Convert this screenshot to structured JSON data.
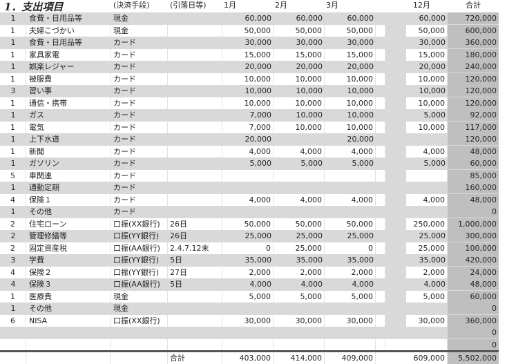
{
  "header": {
    "title": "1．支出項目",
    "method": "(決済手段)",
    "date": "(引落日等)",
    "months": [
      "1月",
      "2月",
      "3月"
    ],
    "dec": "12月",
    "total": "合計"
  },
  "rows": [
    {
      "n": "1",
      "item": "食費・日用品等",
      "method": "現金",
      "date": "",
      "m1": "60,000",
      "m2": "60,000",
      "m3": "60,000",
      "dec": "60,000",
      "total": "720,000"
    },
    {
      "n": "1",
      "item": "夫婦こづかい",
      "method": "現金",
      "date": "",
      "m1": "50,000",
      "m2": "50,000",
      "m3": "50,000",
      "dec": "50,000",
      "total": "600,000"
    },
    {
      "n": "1",
      "item": "食費・日用品等",
      "method": "カード",
      "date": "",
      "m1": "30,000",
      "m2": "30,000",
      "m3": "30,000",
      "dec": "30,000",
      "total": "360,000"
    },
    {
      "n": "1",
      "item": "家具家電",
      "method": "カード",
      "date": "",
      "m1": "15,000",
      "m2": "15,000",
      "m3": "15,000",
      "dec": "15,000",
      "total": "180,000"
    },
    {
      "n": "1",
      "item": "娯楽レジャー",
      "method": "カード",
      "date": "",
      "m1": "20,000",
      "m2": "20,000",
      "m3": "20,000",
      "dec": "20,000",
      "total": "240,000"
    },
    {
      "n": "1",
      "item": "被服費",
      "method": "カード",
      "date": "",
      "m1": "10,000",
      "m2": "10,000",
      "m3": "10,000",
      "dec": "10,000",
      "total": "120,000"
    },
    {
      "n": "3",
      "item": "習い事",
      "method": "カード",
      "date": "",
      "m1": "10,000",
      "m2": "10,000",
      "m3": "10,000",
      "dec": "10,000",
      "total": "120,000"
    },
    {
      "n": "1",
      "item": "通信・携帯",
      "method": "カード",
      "date": "",
      "m1": "10,000",
      "m2": "10,000",
      "m3": "10,000",
      "dec": "10,000",
      "total": "120,000"
    },
    {
      "n": "1",
      "item": "ガス",
      "method": "カード",
      "date": "",
      "m1": "7,000",
      "m2": "10,000",
      "m3": "10,000",
      "dec": "5,000",
      "total": "92,000"
    },
    {
      "n": "1",
      "item": "電気",
      "method": "カード",
      "date": "",
      "m1": "7,000",
      "m2": "10,000",
      "m3": "10,000",
      "dec": "10,000",
      "total": "117,000"
    },
    {
      "n": "1",
      "item": "上下水道",
      "method": "カード",
      "date": "",
      "m1": "20,000",
      "m2": "",
      "m3": "20,000",
      "dec": "",
      "total": "120,000"
    },
    {
      "n": "1",
      "item": "新聞",
      "method": "カード",
      "date": "",
      "m1": "4,000",
      "m2": "4,000",
      "m3": "4,000",
      "dec": "4,000",
      "total": "48,000"
    },
    {
      "n": "1",
      "item": "ガソリン",
      "method": "カード",
      "date": "",
      "m1": "5,000",
      "m2": "5,000",
      "m3": "5,000",
      "dec": "5,000",
      "total": "60,000"
    },
    {
      "n": "5",
      "item": "車関連",
      "method": "カード",
      "date": "",
      "m1": "",
      "m2": "",
      "m3": "",
      "dec": "",
      "total": "85,000"
    },
    {
      "n": "1",
      "item": "通勤定期",
      "method": "カード",
      "date": "",
      "m1": "",
      "m2": "",
      "m3": "",
      "dec": "",
      "total": "160,000"
    },
    {
      "n": "4",
      "item": "保険１",
      "method": "カード",
      "date": "",
      "m1": "4,000",
      "m2": "4,000",
      "m3": "4,000",
      "dec": "4,000",
      "total": "48,000"
    },
    {
      "n": "1",
      "item": "その他",
      "method": "カード",
      "date": "",
      "m1": "",
      "m2": "",
      "m3": "",
      "dec": "",
      "total": "0"
    },
    {
      "n": "2",
      "item": "住宅ローン",
      "method": "口振(XX銀行)",
      "date": "26日",
      "m1": "50,000",
      "m2": "50,000",
      "m3": "50,000",
      "dec": "250,000",
      "total": "1,000,000"
    },
    {
      "n": "2",
      "item": "管理修繕等",
      "method": "口振(YY銀行)",
      "date": "26日",
      "m1": "25,000",
      "m2": "25,000",
      "m3": "25,000",
      "dec": "25,000",
      "total": "300,000"
    },
    {
      "n": "2",
      "item": "固定資産税",
      "method": "口振(AA銀行)",
      "date": "2.4.7.12末",
      "m1": "0",
      "m2": "25,000",
      "m3": "0",
      "dec": "25,000",
      "total": "100,000"
    },
    {
      "n": "3",
      "item": "学費",
      "method": "口振(YY銀行)",
      "date": "5日",
      "m1": "35,000",
      "m2": "35,000",
      "m3": "35,000",
      "dec": "35,000",
      "total": "420,000"
    },
    {
      "n": "4",
      "item": "保険２",
      "method": "口振(YY銀行)",
      "date": "27日",
      "m1": "2,000",
      "m2": "2,000",
      "m3": "2,000",
      "dec": "2,000",
      "total": "24,000"
    },
    {
      "n": "4",
      "item": "保険３",
      "method": "口振(AA銀行)",
      "date": "5日",
      "m1": "4,000",
      "m2": "4,000",
      "m3": "4,000",
      "dec": "4,000",
      "total": "48,000"
    },
    {
      "n": "1",
      "item": "医療費",
      "method": "現金",
      "date": "",
      "m1": "5,000",
      "m2": "5,000",
      "m3": "5,000",
      "dec": "5,000",
      "total": "60,000"
    },
    {
      "n": "1",
      "item": "その他",
      "method": "現金",
      "date": "",
      "m1": "",
      "m2": "",
      "m3": "",
      "dec": "",
      "total": "0"
    },
    {
      "n": "6",
      "item": "NISA",
      "method": "口振(XX銀行)",
      "date": "",
      "m1": "30,000",
      "m2": "30,000",
      "m3": "30,000",
      "dec": "30,000",
      "total": "360,000"
    },
    {
      "n": "",
      "item": "",
      "method": "",
      "date": "",
      "m1": "",
      "m2": "",
      "m3": "",
      "dec": "",
      "total": "0"
    },
    {
      "n": "",
      "item": "",
      "method": "",
      "date": "",
      "m1": "",
      "m2": "",
      "m3": "",
      "dec": "",
      "total": "0"
    }
  ],
  "totals": {
    "label": "合計",
    "m1": "403,000",
    "m2": "414,000",
    "m3": "409,000",
    "dec": "609,000",
    "total": "5,502,000"
  }
}
